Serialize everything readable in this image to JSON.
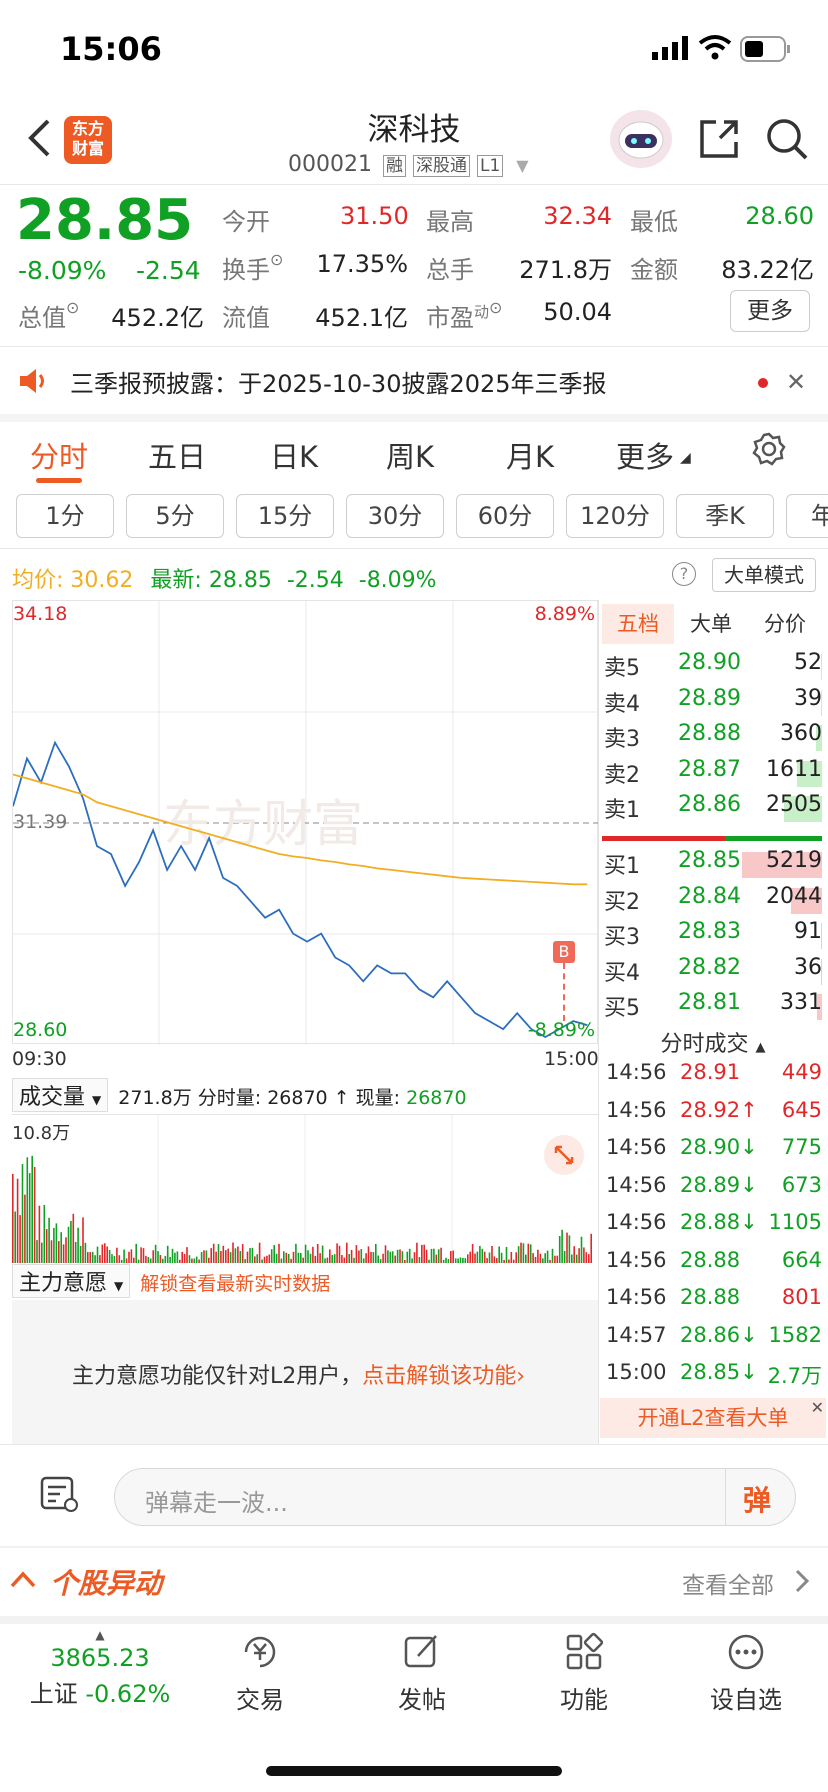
{
  "status": {
    "time": "15:06"
  },
  "header": {
    "title": "深科技",
    "code": "000021",
    "tags": [
      "融",
      "深股通",
      "L1"
    ],
    "logo": "东方财富"
  },
  "quote": {
    "price": "28.85",
    "pct": "-8.09%",
    "chg": "-2.54",
    "open_label": "今开",
    "open": "31.50",
    "high_label": "最高",
    "high": "32.34",
    "low_label": "最低",
    "low": "28.60",
    "turnover_label": "换手",
    "turnover": "17.35%",
    "vol_label": "总手",
    "vol": "271.8万",
    "amount_label": "金额",
    "amount": "83.22亿",
    "mcap_label": "总值",
    "mcap": "452.2亿",
    "float_label": "流值",
    "float": "452.1亿",
    "pe_label": "市盈",
    "pe_sup": "动",
    "pe": "50.04",
    "more": "更多"
  },
  "notice": {
    "text": "三季报预披露：于2025-10-30披露2025年三季报"
  },
  "tabs": [
    "分时",
    "五日",
    "日K",
    "周K",
    "月K",
    "更多"
  ],
  "periods": [
    "1分",
    "5分",
    "15分",
    "30分",
    "60分",
    "120分",
    "季K",
    "年"
  ],
  "info_line": {
    "avg_label": "均价:",
    "avg": "30.62",
    "last_label": "最新:",
    "last": "28.85",
    "chg": "-2.54",
    "pct": "-8.09%",
    "mode": "大单模式"
  },
  "chart_labels": {
    "top_left": "34.18",
    "top_right": "8.89%",
    "mid": "31.39",
    "bot_left": "28.60",
    "bot_right": "-8.89%",
    "t_start": "09:30",
    "t_end": "15:00",
    "marker": "B"
  },
  "vol_header": {
    "sel": "成交量",
    "total": "271.8万",
    "fenshi_label": "分时量:",
    "fenshi": "26870",
    "arrow": "↑",
    "now_label": "现量:",
    "now": "26870",
    "max": "10.8万"
  },
  "zl": {
    "sel": "主力意愿",
    "unlock": "解锁查看最新实时数据",
    "msg": "主力意愿功能仅针对L2用户，",
    "link": "点击解锁该功能"
  },
  "ob_tabs": [
    "五档",
    "大单",
    "分价"
  ],
  "asks": [
    {
      "l": "卖5",
      "p": "28.90",
      "v": "52"
    },
    {
      "l": "卖4",
      "p": "28.89",
      "v": "39"
    },
    {
      "l": "卖3",
      "p": "28.88",
      "v": "360"
    },
    {
      "l": "卖2",
      "p": "28.87",
      "v": "1611"
    },
    {
      "l": "卖1",
      "p": "28.86",
      "v": "2505"
    }
  ],
  "bids": [
    {
      "l": "买1",
      "p": "28.85",
      "v": "5219"
    },
    {
      "l": "买2",
      "p": "28.84",
      "v": "2044"
    },
    {
      "l": "买3",
      "p": "28.83",
      "v": "91"
    },
    {
      "l": "买4",
      "p": "28.82",
      "v": "36"
    },
    {
      "l": "买5",
      "p": "28.81",
      "v": "331"
    }
  ],
  "trades_title": "分时成交",
  "trades": [
    {
      "t": "14:56",
      "p": "28.91",
      "v": "449",
      "d": ""
    },
    {
      "t": "14:56",
      "p": "28.92",
      "v": "645",
      "d": "↑"
    },
    {
      "t": "14:56",
      "p": "28.90",
      "v": "775",
      "d": "↓"
    },
    {
      "t": "14:56",
      "p": "28.89",
      "v": "673",
      "d": "↓"
    },
    {
      "t": "14:56",
      "p": "28.88",
      "v": "1105",
      "d": "↓"
    },
    {
      "t": "14:56",
      "p": "28.88",
      "v": "664",
      "d": ""
    },
    {
      "t": "14:56",
      "p": "28.88",
      "v": "801",
      "d": ""
    },
    {
      "t": "14:57",
      "p": "28.86",
      "v": "1582",
      "d": "↓"
    },
    {
      "t": "15:00",
      "p": "28.85",
      "v": "2.7万",
      "d": "↓"
    }
  ],
  "l2_banner": "开通L2查看大单",
  "comment": {
    "placeholder": "弹幕走一波...",
    "btn": "弹"
  },
  "anomaly": {
    "title": "个股异动",
    "view_all": "查看全部"
  },
  "bottom": {
    "index": "3865.23",
    "index_name": "上证",
    "index_pct": "-0.62%",
    "items": [
      "交易",
      "发帖",
      "功能",
      "设自选"
    ]
  },
  "colors": {
    "up": "#e0282a",
    "down": "#10a024",
    "accent": "#ee5a24",
    "line": "#2c6dbf",
    "avg": "#f2ae21"
  },
  "chart_data": {
    "type": "line",
    "title": "",
    "x_range": [
      "09:30",
      "15:00"
    ],
    "ylim": [
      28.6,
      34.18
    ],
    "ref": 31.39,
    "series": [
      {
        "name": "",
        "values": [
          31.6,
          32.2,
          31.9,
          32.4,
          32.1,
          31.7,
          31.1,
          31.0,
          30.6,
          30.9,
          31.3,
          30.8,
          31.1,
          30.8,
          31.2,
          30.7,
          30.6,
          30.4,
          30.2,
          30.3,
          30.0,
          29.9,
          30.0,
          29.7,
          29.6,
          29.4,
          29.6,
          29.5,
          29.5,
          29.3,
          29.2,
          29.4,
          29.2,
          29.0,
          28.9,
          28.8,
          29.0,
          28.8,
          28.7,
          28.8,
          28.9,
          28.85
        ]
      },
      {
        "name": "",
        "values": [
          32.0,
          31.95,
          31.9,
          31.85,
          31.8,
          31.75,
          31.65,
          31.6,
          31.55,
          31.5,
          31.45,
          31.4,
          31.35,
          31.3,
          31.25,
          31.2,
          31.15,
          31.1,
          31.05,
          31.0,
          30.97,
          30.95,
          30.92,
          30.9,
          30.87,
          30.85,
          30.82,
          30.8,
          30.78,
          30.76,
          30.74,
          30.72,
          30.7,
          30.69,
          30.68,
          30.67,
          30.66,
          30.65,
          30.64,
          30.63,
          30.62,
          30.62
        ]
      }
    ]
  }
}
